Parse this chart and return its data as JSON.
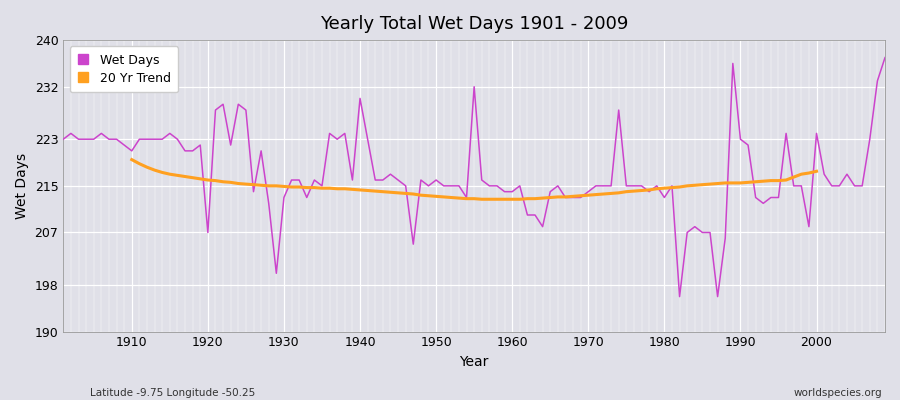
{
  "title": "Yearly Total Wet Days 1901 - 2009",
  "xlabel": "Year",
  "ylabel": "Wet Days",
  "footnote_left": "Latitude -9.75 Longitude -50.25",
  "footnote_right": "worldspecies.org",
  "ylim": [
    190,
    240
  ],
  "yticks": [
    190,
    198,
    207,
    215,
    223,
    232,
    240
  ],
  "xticks": [
    1910,
    1920,
    1930,
    1940,
    1950,
    1960,
    1970,
    1980,
    1990,
    2000
  ],
  "line_color": "#CC44CC",
  "trend_color": "#FFA020",
  "plot_bg_color": "#E0E0E8",
  "fig_bg_color": "#E0E0E8",
  "years": [
    1901,
    1902,
    1903,
    1904,
    1905,
    1906,
    1907,
    1908,
    1909,
    1910,
    1911,
    1912,
    1913,
    1914,
    1915,
    1916,
    1917,
    1918,
    1919,
    1920,
    1921,
    1922,
    1923,
    1924,
    1925,
    1926,
    1927,
    1928,
    1929,
    1930,
    1931,
    1932,
    1933,
    1934,
    1935,
    1936,
    1937,
    1938,
    1939,
    1940,
    1941,
    1942,
    1943,
    1944,
    1945,
    1946,
    1947,
    1948,
    1949,
    1950,
    1951,
    1952,
    1953,
    1954,
    1955,
    1956,
    1957,
    1958,
    1959,
    1960,
    1961,
    1962,
    1963,
    1964,
    1965,
    1966,
    1967,
    1968,
    1969,
    1970,
    1971,
    1972,
    1973,
    1974,
    1975,
    1976,
    1977,
    1978,
    1979,
    1980,
    1981,
    1982,
    1983,
    1984,
    1985,
    1986,
    1987,
    1988,
    1989,
    1990,
    1991,
    1992,
    1993,
    1994,
    1995,
    1996,
    1997,
    1998,
    1999,
    2000,
    2001,
    2002,
    2003,
    2004,
    2005,
    2006,
    2007,
    2008,
    2009
  ],
  "wet_days": [
    223,
    224,
    223,
    223,
    223,
    224,
    223,
    223,
    222,
    221,
    223,
    223,
    223,
    223,
    224,
    223,
    221,
    221,
    222,
    207,
    228,
    229,
    222,
    229,
    228,
    214,
    221,
    212,
    200,
    213,
    216,
    216,
    213,
    216,
    215,
    224,
    223,
    224,
    216,
    230,
    223,
    216,
    216,
    217,
    216,
    215,
    205,
    216,
    215,
    216,
    215,
    215,
    215,
    213,
    232,
    216,
    215,
    215,
    214,
    214,
    215,
    210,
    210,
    208,
    214,
    215,
    213,
    213,
    213,
    214,
    215,
    215,
    215,
    228,
    215,
    215,
    215,
    214,
    215,
    213,
    215,
    196,
    207,
    208,
    207,
    207,
    196,
    206,
    236,
    223,
    222,
    213,
    212,
    213,
    213,
    224,
    215,
    215,
    208,
    224,
    217,
    215,
    215,
    217,
    215,
    215,
    223,
    233,
    237
  ],
  "trend_years": [
    1910,
    1911,
    1912,
    1913,
    1914,
    1915,
    1916,
    1917,
    1918,
    1919,
    1920,
    1921,
    1922,
    1923,
    1924,
    1925,
    1926,
    1927,
    1928,
    1929,
    1930,
    1931,
    1932,
    1933,
    1934,
    1935,
    1936,
    1937,
    1938,
    1939,
    1940,
    1941,
    1942,
    1943,
    1944,
    1945,
    1946,
    1947,
    1948,
    1949,
    1950,
    1951,
    1952,
    1953,
    1954,
    1955,
    1956,
    1957,
    1958,
    1959,
    1960,
    1961,
    1962,
    1963,
    1964,
    1965,
    1966,
    1967,
    1968,
    1969,
    1970,
    1971,
    1972,
    1973,
    1974,
    1975,
    1976,
    1977,
    1978,
    1979,
    1980,
    1981,
    1982,
    1983,
    1984,
    1985,
    1986,
    1987,
    1988,
    1989,
    1990,
    1991,
    1992,
    1993,
    1994,
    1995,
    1996,
    1997,
    1998,
    1999,
    2000
  ],
  "trend_vals": [
    219.5,
    218.8,
    218.2,
    217.7,
    217.3,
    217.0,
    216.8,
    216.6,
    216.4,
    216.2,
    216.0,
    215.9,
    215.7,
    215.6,
    215.4,
    215.3,
    215.2,
    215.1,
    215.0,
    215.0,
    214.9,
    214.8,
    214.8,
    214.7,
    214.7,
    214.6,
    214.6,
    214.5,
    214.5,
    214.4,
    214.3,
    214.2,
    214.1,
    214.0,
    213.9,
    213.8,
    213.7,
    213.6,
    213.4,
    213.3,
    213.2,
    213.1,
    213.0,
    212.9,
    212.8,
    212.8,
    212.7,
    212.7,
    212.7,
    212.7,
    212.7,
    212.7,
    212.8,
    212.8,
    212.9,
    213.0,
    213.1,
    213.1,
    213.2,
    213.3,
    213.4,
    213.5,
    213.6,
    213.7,
    213.8,
    214.0,
    214.1,
    214.2,
    214.3,
    214.5,
    214.6,
    214.7,
    214.8,
    215.0,
    215.1,
    215.2,
    215.3,
    215.4,
    215.5,
    215.5,
    215.5,
    215.6,
    215.7,
    215.8,
    215.9,
    215.9,
    216.0,
    216.5,
    217.0,
    217.2,
    217.5
  ]
}
